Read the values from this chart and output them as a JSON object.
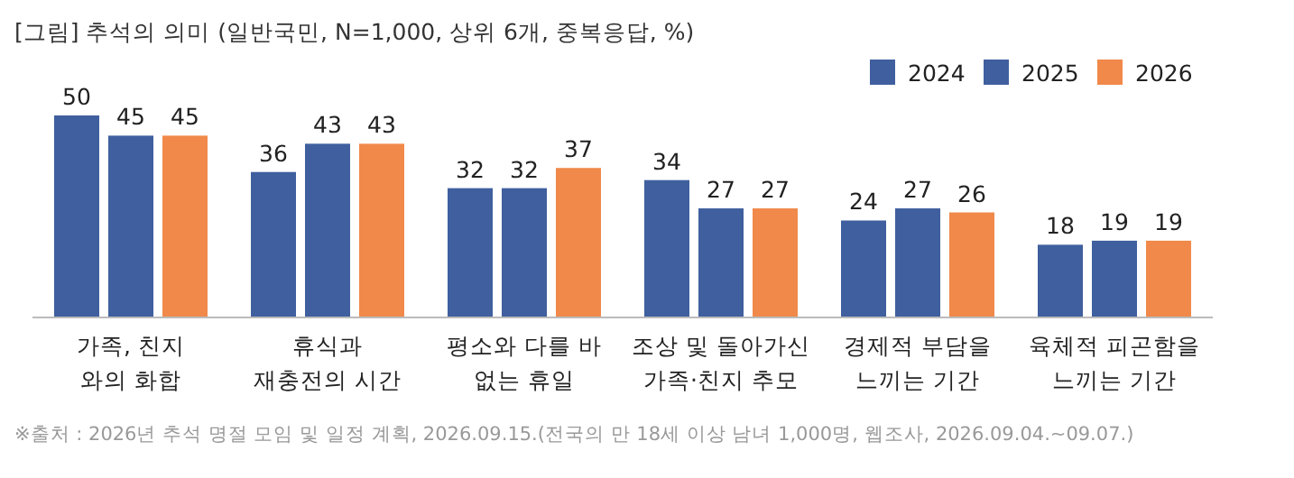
{
  "chart_data": {
    "type": "bar",
    "title": "[그림] 추석의 의미 (일반국민, N=1,000, 상위 6개, 중복응답, %)",
    "categories": [
      "가족, 친지\n와의 화합",
      "휴식과\n재충전의 시간",
      "평소와 다를 바\n없는 휴일",
      "조상 및 돌아가신\n가족·친지 추모",
      "경제적 부담을\n느끼는 기간",
      "육체적 피곤함을\n느끼는 기간"
    ],
    "series": [
      {
        "name": "2024",
        "color": "#3f5f9e",
        "values": [
          50,
          36,
          32,
          34,
          24,
          18
        ]
      },
      {
        "name": "2025",
        "color": "#3f5f9e",
        "values": [
          45,
          43,
          32,
          27,
          27,
          19
        ]
      },
      {
        "name": "2026",
        "color": "#f0894a",
        "values": [
          45,
          43,
          37,
          27,
          26,
          19
        ]
      }
    ],
    "data_labels": true,
    "legend": "top right",
    "annotations": [
      "※출처 : 2026년 추석 명절 모임 및 일정 계획, 2026.09.15.(전국의 만 18세 이상 남녀 1,000명, 웹조사, 2026.09.04.~09.07.)"
    ]
  }
}
